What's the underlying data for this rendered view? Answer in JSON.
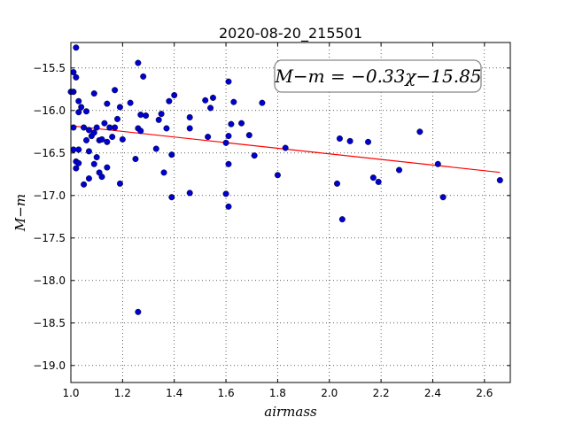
{
  "chart_data": {
    "type": "scatter",
    "title": "2020-08-20_215501",
    "xlabel": "airmass",
    "ylabel": "M−m",
    "xlim": [
      1.0,
      2.7
    ],
    "ylim": [
      -19.2,
      -15.2
    ],
    "y_inverted": true,
    "grid": true,
    "xticks": [
      1.0,
      1.2,
      1.4,
      1.6,
      1.8,
      2.0,
      2.2,
      2.4,
      2.6
    ],
    "xtick_labels": [
      "1.0",
      "1.2",
      "1.4",
      "1.6",
      "1.8",
      "2.0",
      "2.2",
      "2.4",
      "2.6"
    ],
    "yticks": [
      -15.5,
      -16.0,
      -16.5,
      -17.0,
      -17.5,
      -18.0,
      -18.5,
      -19.0
    ],
    "ytick_labels": [
      "−15.5",
      "−16.0",
      "−16.5",
      "−17.0",
      "−17.5",
      "−18.0",
      "−18.5",
      "−19.0"
    ],
    "annotation": "M−m = −0.33χ−15.85",
    "fit": {
      "slope": -0.33,
      "intercept": -15.85,
      "x_range": [
        1.0,
        2.66
      ],
      "color": "#ff0000"
    },
    "marker_color": "#0000cc",
    "points": [
      [
        1.01,
        -15.78
      ],
      [
        1.01,
        -15.55
      ],
      [
        1.02,
        -15.26
      ],
      [
        1.02,
        -15.61
      ],
      [
        1.0,
        -15.78
      ],
      [
        1.01,
        -16.2
      ],
      [
        1.03,
        -15.89
      ],
      [
        1.03,
        -16.02
      ],
      [
        1.04,
        -15.96
      ],
      [
        1.01,
        -16.46
      ],
      [
        1.02,
        -16.6
      ],
      [
        1.02,
        -16.68
      ],
      [
        1.03,
        -16.62
      ],
      [
        1.03,
        -16.46
      ],
      [
        1.05,
        -16.2
      ],
      [
        1.06,
        -16.01
      ],
      [
        1.06,
        -16.35
      ],
      [
        1.07,
        -16.23
      ],
      [
        1.07,
        -16.48
      ],
      [
        1.08,
        -16.3
      ],
      [
        1.09,
        -16.26
      ],
      [
        1.09,
        -16.63
      ],
      [
        1.1,
        -16.55
      ],
      [
        1.1,
        -16.2
      ],
      [
        1.11,
        -16.35
      ],
      [
        1.11,
        -16.73
      ],
      [
        1.12,
        -16.78
      ],
      [
        1.12,
        -16.34
      ],
      [
        1.13,
        -16.15
      ],
      [
        1.14,
        -16.37
      ],
      [
        1.14,
        -16.67
      ],
      [
        1.15,
        -16.2
      ],
      [
        1.16,
        -16.31
      ],
      [
        1.17,
        -16.2
      ],
      [
        1.18,
        -16.1
      ],
      [
        1.19,
        -15.96
      ],
      [
        1.2,
        -16.34
      ],
      [
        1.19,
        -16.86
      ],
      [
        1.09,
        -15.8
      ],
      [
        1.14,
        -15.92
      ],
      [
        1.17,
        -15.76
      ],
      [
        1.05,
        -16.87
      ],
      [
        1.07,
        -16.8
      ],
      [
        1.23,
        -15.91
      ],
      [
        1.25,
        -16.57
      ],
      [
        1.26,
        -15.44
      ],
      [
        1.26,
        -16.21
      ],
      [
        1.27,
        -16.05
      ],
      [
        1.27,
        -16.24
      ],
      [
        1.28,
        -15.6
      ],
      [
        1.29,
        -16.06
      ],
      [
        1.26,
        -18.37
      ],
      [
        1.33,
        -16.45
      ],
      [
        1.34,
        -16.11
      ],
      [
        1.35,
        -16.04
      ],
      [
        1.36,
        -16.73
      ],
      [
        1.37,
        -16.21
      ],
      [
        1.38,
        -15.89
      ],
      [
        1.39,
        -16.52
      ],
      [
        1.39,
        -17.02
      ],
      [
        1.4,
        -15.82
      ],
      [
        1.46,
        -16.08
      ],
      [
        1.46,
        -16.21
      ],
      [
        1.46,
        -16.97
      ],
      [
        1.52,
        -15.88
      ],
      [
        1.53,
        -16.31
      ],
      [
        1.54,
        -15.97
      ],
      [
        1.55,
        -15.85
      ],
      [
        1.6,
        -16.38
      ],
      [
        1.6,
        -16.98
      ],
      [
        1.61,
        -15.66
      ],
      [
        1.61,
        -16.3
      ],
      [
        1.61,
        -16.63
      ],
      [
        1.61,
        -17.13
      ],
      [
        1.62,
        -16.16
      ],
      [
        1.63,
        -15.9
      ],
      [
        1.66,
        -16.15
      ],
      [
        1.69,
        -16.29
      ],
      [
        1.71,
        -16.53
      ],
      [
        1.74,
        -15.91
      ],
      [
        1.8,
        -16.76
      ],
      [
        1.83,
        -16.44
      ],
      [
        2.03,
        -16.86
      ],
      [
        2.04,
        -16.33
      ],
      [
        2.05,
        -17.28
      ],
      [
        2.08,
        -16.36
      ],
      [
        2.15,
        -16.37
      ],
      [
        2.17,
        -16.79
      ],
      [
        2.19,
        -16.84
      ],
      [
        2.27,
        -16.7
      ],
      [
        2.35,
        -16.25
      ],
      [
        2.42,
        -16.63
      ],
      [
        2.44,
        -17.02
      ],
      [
        2.66,
        -16.82
      ]
    ]
  }
}
